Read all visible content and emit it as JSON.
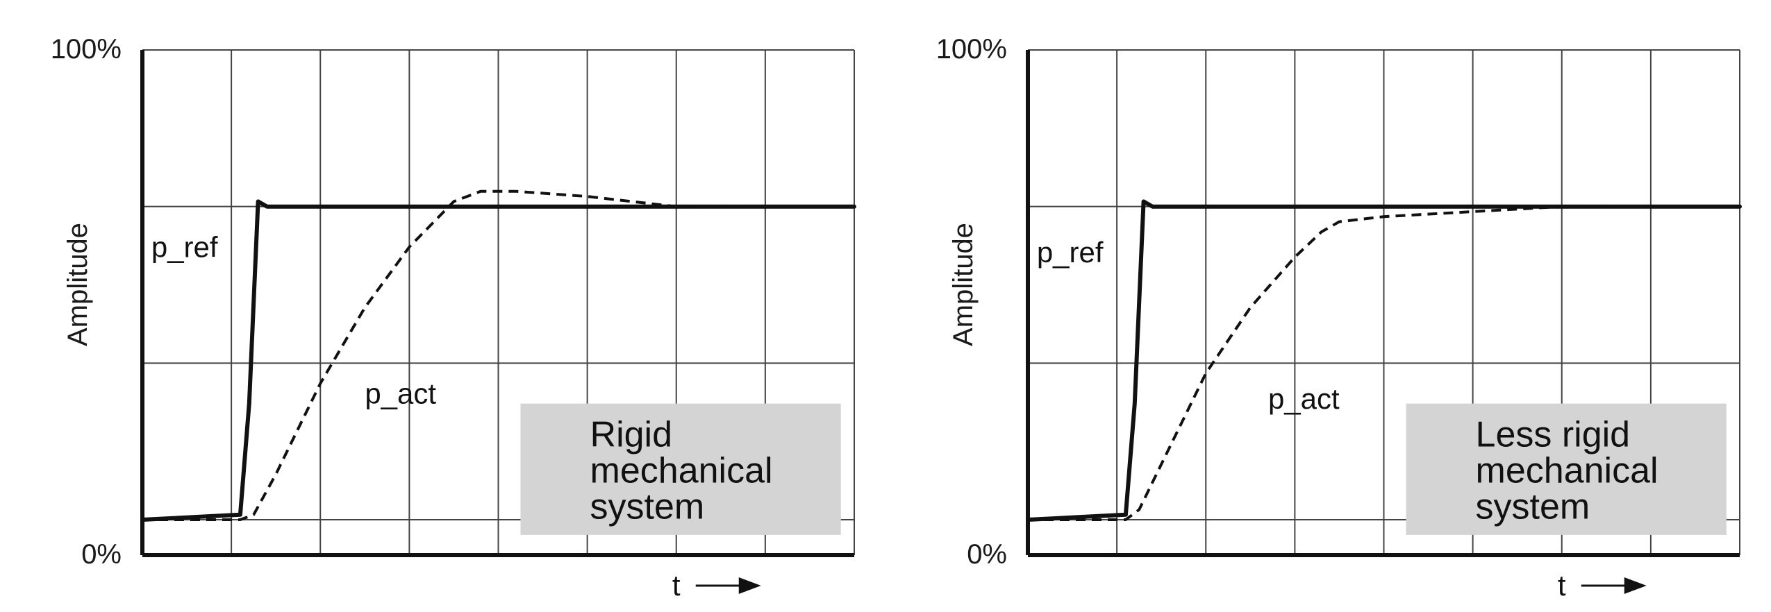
{
  "chart_data": [
    {
      "type": "line",
      "xlabel": "t",
      "ylabel": "Amplitude",
      "y_tick_labels": [
        "0%",
        "100%"
      ],
      "ylim": [
        0,
        100
      ],
      "xlim": [
        0,
        8
      ],
      "grid": true,
      "note": [
        "Rigid",
        "mechanical",
        "system"
      ],
      "series": [
        {
          "name": "p_ref",
          "style": "solid",
          "x": [
            0,
            1.1,
            1.2,
            1.3,
            1.4,
            8
          ],
          "y": [
            7,
            8,
            30,
            70,
            69,
            69
          ]
        },
        {
          "name": "p_act",
          "style": "dashed",
          "x": [
            0,
            1.1,
            1.25,
            1.5,
            2.0,
            2.5,
            3.0,
            3.5,
            3.8,
            4.2,
            5.0,
            6.0,
            7.0
          ],
          "y": [
            7,
            7,
            8,
            16,
            34,
            49,
            61,
            70,
            72,
            72,
            71,
            69,
            69
          ]
        }
      ],
      "series_label_positions": {
        "p_ref": [
          0.1,
          59
        ],
        "p_act": [
          2.5,
          30
        ]
      }
    },
    {
      "type": "line",
      "xlabel": "t",
      "ylabel": "Amplitude",
      "y_tick_labels": [
        "0%",
        "100%"
      ],
      "ylim": [
        0,
        100
      ],
      "xlim": [
        0,
        8
      ],
      "grid": true,
      "note": [
        "Less rigid",
        "mechanical",
        "system"
      ],
      "series": [
        {
          "name": "p_ref",
          "style": "solid",
          "x": [
            0,
            1.1,
            1.2,
            1.3,
            1.4,
            8
          ],
          "y": [
            7,
            8,
            30,
            70,
            69,
            69
          ]
        },
        {
          "name": "p_act",
          "style": "dashed",
          "x": [
            0,
            1.1,
            1.25,
            1.5,
            2.0,
            2.5,
            3.0,
            3.3,
            3.5,
            4.0,
            5.0,
            6.0,
            7.0
          ],
          "y": [
            7,
            7,
            9,
            18,
            36,
            49,
            59,
            64,
            66,
            67,
            68,
            69,
            69
          ]
        }
      ],
      "series_label_positions": {
        "p_ref": [
          0.1,
          58
        ],
        "p_act": [
          2.7,
          29
        ]
      }
    }
  ]
}
